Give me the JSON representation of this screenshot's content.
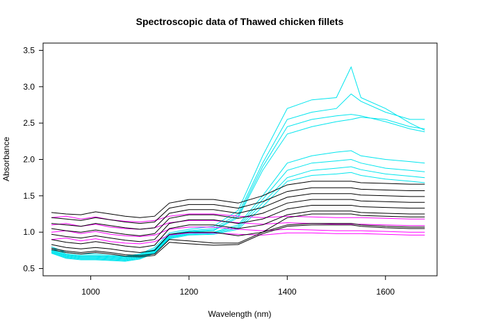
{
  "chart_data": {
    "type": "line",
    "title": "Spectroscopic data of Thawed chicken fillets",
    "xlabel": "Wavelength (nm)",
    "ylabel": "Absorbance",
    "xlim": [
      903,
      1705
    ],
    "ylim": [
      0.4,
      3.6
    ],
    "xticks": [
      1000,
      1200,
      1400,
      1600
    ],
    "yticks": [
      0.5,
      1.0,
      1.5,
      2.0,
      2.5,
      3.0,
      3.5
    ],
    "xtick_labels": [
      "1000",
      "1200",
      "1400",
      "1600"
    ],
    "ytick_labels": [
      "0.5",
      "1.0",
      "1.5",
      "2.0",
      "2.5",
      "3.0",
      "3.5"
    ],
    "grid": false,
    "legend": "none",
    "colors": {
      "group_a": "#00e5ee",
      "group_b": "#ff00ff",
      "group_c": "#000000"
    },
    "x": [
      920,
      950,
      980,
      1010,
      1040,
      1070,
      1100,
      1130,
      1160,
      1200,
      1250,
      1300,
      1350,
      1400,
      1450,
      1500,
      1530,
      1550,
      1600,
      1650,
      1680
    ],
    "series": [
      {
        "group": "group_a",
        "values": [
          0.75,
          0.68,
          0.66,
          0.66,
          0.65,
          0.64,
          0.67,
          0.75,
          0.95,
          1.0,
          1.02,
          1.2,
          1.85,
          2.35,
          2.45,
          2.52,
          2.55,
          2.58,
          2.55,
          2.45,
          2.42
        ]
      },
      {
        "group": "group_a",
        "values": [
          0.78,
          0.7,
          0.68,
          0.68,
          0.67,
          0.66,
          0.69,
          0.77,
          0.97,
          1.02,
          1.05,
          1.25,
          1.95,
          2.55,
          2.65,
          2.7,
          2.9,
          2.8,
          2.65,
          2.55,
          2.55
        ]
      },
      {
        "group": "group_a",
        "values": [
          0.8,
          0.72,
          0.7,
          0.7,
          0.68,
          0.67,
          0.7,
          0.79,
          0.99,
          1.04,
          1.08,
          1.3,
          2.05,
          2.7,
          2.82,
          2.85,
          3.27,
          2.85,
          2.7,
          2.5,
          2.4
        ]
      },
      {
        "group": "group_a",
        "values": [
          0.76,
          0.69,
          0.67,
          0.67,
          0.66,
          0.65,
          0.68,
          0.76,
          0.96,
          1.01,
          1.03,
          1.22,
          1.9,
          2.45,
          2.55,
          2.6,
          2.62,
          2.6,
          2.52,
          2.42,
          2.38
        ]
      },
      {
        "group": "group_a",
        "values": [
          0.74,
          0.67,
          0.65,
          0.65,
          0.64,
          0.63,
          0.66,
          0.74,
          0.94,
          0.99,
          1.0,
          1.1,
          1.5,
          1.95,
          2.05,
          2.1,
          2.12,
          2.05,
          2.0,
          1.97,
          1.95
        ]
      },
      {
        "group": "group_a",
        "values": [
          0.73,
          0.66,
          0.64,
          0.64,
          0.63,
          0.62,
          0.65,
          0.73,
          0.93,
          0.98,
          0.99,
          1.08,
          1.45,
          1.85,
          1.95,
          1.98,
          2.0,
          1.95,
          1.88,
          1.85,
          1.83
        ]
      },
      {
        "group": "group_a",
        "values": [
          0.72,
          0.65,
          0.63,
          0.63,
          0.62,
          0.61,
          0.64,
          0.72,
          0.92,
          0.97,
          0.98,
          1.06,
          1.4,
          1.75,
          1.85,
          1.88,
          1.9,
          1.86,
          1.8,
          1.77,
          1.75
        ]
      },
      {
        "group": "group_a",
        "values": [
          0.71,
          0.64,
          0.62,
          0.62,
          0.61,
          0.6,
          0.63,
          0.71,
          0.91,
          0.96,
          0.97,
          1.04,
          1.35,
          1.7,
          1.78,
          1.8,
          1.82,
          1.78,
          1.73,
          1.7,
          1.68
        ]
      },
      {
        "group": "group_b",
        "values": [
          1.2,
          1.22,
          1.18,
          1.21,
          1.17,
          1.15,
          1.14,
          1.16,
          1.22,
          1.25,
          1.25,
          1.22,
          1.2,
          1.22,
          1.21,
          1.2,
          1.2,
          1.2,
          1.19,
          1.18,
          1.18
        ]
      },
      {
        "group": "group_b",
        "values": [
          1.1,
          1.12,
          1.08,
          1.11,
          1.07,
          1.05,
          1.04,
          1.06,
          1.13,
          1.16,
          1.16,
          1.13,
          1.11,
          1.13,
          1.12,
          1.11,
          1.11,
          1.11,
          1.1,
          1.09,
          1.09
        ]
      },
      {
        "group": "group_b",
        "values": [
          1.0,
          1.02,
          0.98,
          1.01,
          0.97,
          0.95,
          0.94,
          0.96,
          1.04,
          1.07,
          1.07,
          1.04,
          1.02,
          1.04,
          1.03,
          1.02,
          1.02,
          1.02,
          1.01,
          1.0,
          1.0
        ]
      },
      {
        "group": "group_b",
        "values": [
          0.9,
          0.92,
          0.88,
          0.91,
          0.87,
          0.85,
          0.84,
          0.87,
          0.96,
          0.99,
          0.99,
          0.97,
          0.96,
          0.99,
          0.99,
          0.98,
          0.98,
          0.98,
          0.97,
          0.96,
          0.96
        ]
      },
      {
        "group": "group_c",
        "values": [
          1.27,
          1.25,
          1.24,
          1.28,
          1.25,
          1.22,
          1.2,
          1.22,
          1.4,
          1.45,
          1.45,
          1.4,
          1.5,
          1.65,
          1.7,
          1.7,
          1.7,
          1.68,
          1.67,
          1.66,
          1.66
        ]
      },
      {
        "group": "group_c",
        "values": [
          1.2,
          1.18,
          1.16,
          1.2,
          1.17,
          1.14,
          1.12,
          1.14,
          1.33,
          1.38,
          1.38,
          1.33,
          1.42,
          1.56,
          1.61,
          1.61,
          1.61,
          1.59,
          1.58,
          1.57,
          1.57
        ]
      },
      {
        "group": "group_c",
        "values": [
          1.12,
          1.1,
          1.08,
          1.12,
          1.09,
          1.06,
          1.04,
          1.06,
          1.26,
          1.31,
          1.31,
          1.26,
          1.34,
          1.48,
          1.53,
          1.53,
          1.53,
          1.51,
          1.5,
          1.49,
          1.49
        ]
      },
      {
        "group": "group_c",
        "values": [
          1.05,
          1.02,
          1.0,
          1.03,
          1.0,
          0.97,
          0.95,
          0.98,
          1.19,
          1.24,
          1.24,
          1.19,
          1.26,
          1.4,
          1.45,
          1.45,
          1.45,
          1.43,
          1.42,
          1.41,
          1.41
        ]
      },
      {
        "group": "group_c",
        "values": [
          0.97,
          0.94,
          0.92,
          0.95,
          0.92,
          0.89,
          0.87,
          0.9,
          1.12,
          1.17,
          1.17,
          1.12,
          1.18,
          1.32,
          1.37,
          1.37,
          1.37,
          1.35,
          1.34,
          1.33,
          1.33
        ]
      },
      {
        "group": "group_c",
        "values": [
          0.9,
          0.86,
          0.84,
          0.87,
          0.84,
          0.81,
          0.79,
          0.82,
          1.05,
          1.1,
          1.1,
          1.05,
          1.1,
          1.24,
          1.29,
          1.29,
          1.29,
          1.27,
          1.26,
          1.25,
          1.25
        ]
      },
      {
        "group": "group_c",
        "values": [
          0.83,
          0.79,
          0.77,
          0.79,
          0.77,
          0.74,
          0.72,
          0.75,
          0.97,
          1.0,
          1.0,
          0.95,
          1.0,
          1.2,
          1.25,
          1.25,
          1.25,
          1.23,
          1.22,
          1.21,
          1.21
        ]
      },
      {
        "group": "group_c",
        "values": [
          0.78,
          0.74,
          0.72,
          0.74,
          0.72,
          0.69,
          0.68,
          0.7,
          0.9,
          0.88,
          0.85,
          0.85,
          1.0,
          1.1,
          1.12,
          1.12,
          1.12,
          1.1,
          1.08,
          1.07,
          1.07
        ]
      },
      {
        "group": "group_c",
        "values": [
          0.76,
          0.72,
          0.7,
          0.72,
          0.7,
          0.67,
          0.66,
          0.68,
          0.86,
          0.84,
          0.82,
          0.83,
          0.98,
          1.08,
          1.1,
          1.1,
          1.1,
          1.08,
          1.06,
          1.05,
          1.05
        ]
      }
    ]
  }
}
